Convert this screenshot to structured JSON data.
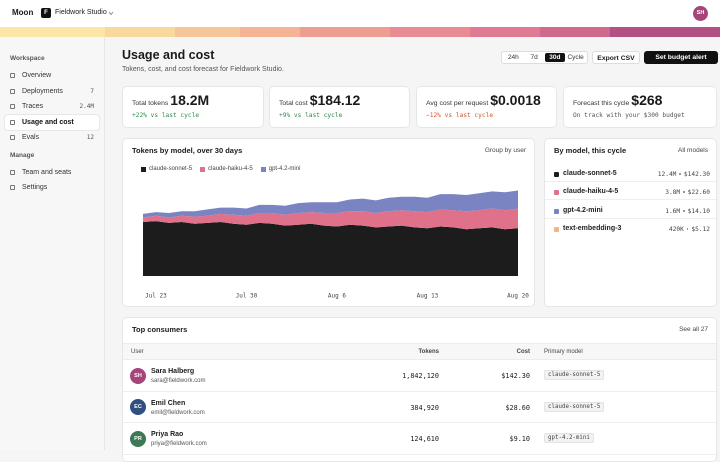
{
  "header": {
    "brand": "Moon",
    "workspace_initial": "F",
    "workspace": "Fieldwork Studio",
    "user_initials": "SH"
  },
  "sidebar": {
    "sections": [
      {
        "title": "Workspace",
        "items": [
          {
            "label": "Overview"
          },
          {
            "label": "Deployments",
            "count": 7
          },
          {
            "label": "Traces",
            "count": "2.4M"
          },
          {
            "label": "Usage and cost",
            "active": true
          },
          {
            "label": "Evals",
            "count": 12
          }
        ]
      },
      {
        "title": "Manage",
        "items": [
          {
            "label": "Team and seats"
          },
          {
            "label": "Settings"
          }
        ]
      }
    ]
  },
  "page": {
    "title": "Usage and cost",
    "subtitle": "Tokens, cost, and cost forecast for Fieldwork Studio.",
    "ranges": [
      "24h",
      "7d",
      "30d",
      "Cycle"
    ],
    "active_range": 2,
    "actions": [
      "Export CSV",
      "Set budget alert"
    ]
  },
  "kpis": [
    {
      "label": "Total tokens",
      "value": "18.2M",
      "note": "+22% vs last cycle",
      "note_color": "#2f8a4e"
    },
    {
      "label": "Total cost",
      "value": "$184.12",
      "note": "+9% vs last cycle",
      "note_color": "#2f8a4e"
    },
    {
      "label": "Avg cost per request",
      "value": "$0.0018",
      "note": "−12% vs last cycle",
      "note_color": "#d0552f"
    },
    {
      "label": "Forecast this cycle",
      "value": "$268",
      "note": "On track with your $300 budget",
      "note_color": "#555555"
    }
  ],
  "usage_chart": {
    "type": "area",
    "title": "Tokens by model, over 30 days",
    "control": "Group by user",
    "categories": [
      null,
      "Jul 23",
      null,
      null,
      null,
      null,
      null,
      null,
      "Jul 30",
      null,
      null,
      null,
      null,
      null,
      null,
      "Aug 6",
      null,
      null,
      null,
      null,
      null,
      null,
      "Aug 13",
      null,
      null,
      null,
      null,
      null,
      null,
      "Aug 20"
    ],
    "ylim": [
      0,
      100
    ],
    "series": [
      {
        "name": "claude-sonnet-5",
        "color": "#1c1c1c",
        "values": [
          60,
          61,
          59,
          60,
          58,
          59,
          60,
          58,
          57,
          59,
          58,
          56,
          57,
          58,
          56,
          55,
          57,
          56,
          54,
          55,
          56,
          54,
          53,
          55,
          54,
          52,
          53,
          54,
          52,
          53
        ]
      },
      {
        "name": "claude-haiku-4-5",
        "color": "#e0718b",
        "values": [
          5,
          6,
          6,
          7,
          8,
          8,
          9,
          10,
          10,
          11,
          12,
          12,
          13,
          13,
          14,
          15,
          15,
          16,
          16,
          17,
          17,
          18,
          18,
          19,
          19,
          20,
          20,
          21,
          21,
          22
        ]
      },
      {
        "name": "gpt-4.2-mini",
        "color": "#7a84c2",
        "values": [
          4,
          4,
          5,
          5,
          6,
          7,
          7,
          8,
          8,
          9,
          9,
          10,
          11,
          11,
          12,
          12,
          13,
          14,
          14,
          15,
          15,
          16,
          16,
          17,
          18,
          18,
          19,
          19,
          20,
          20
        ]
      }
    ]
  },
  "by_model": {
    "title": "By model, this cycle",
    "control": "All models",
    "rows": [
      {
        "name": "claude-sonnet-5",
        "color": "#1c1c1c",
        "tokens": "12.4M",
        "cost": "$142.30"
      },
      {
        "name": "claude-haiku-4-5",
        "color": "#e0718b",
        "tokens": "3.8M",
        "cost": "$22.60"
      },
      {
        "name": "gpt-4.2-mini",
        "color": "#7a84c2",
        "tokens": "1.6M",
        "cost": "$14.10"
      },
      {
        "name": "text-embedding-3",
        "color": "#f0b38a",
        "tokens": "420K",
        "cost": "$5.12"
      }
    ]
  },
  "consumers": {
    "title": "Top consumers",
    "control": "See all 27",
    "columns": [
      "User",
      "Tokens",
      "Cost",
      "Primary model"
    ],
    "rows": [
      {
        "initials": "SH",
        "color": "#a5457a",
        "name": "Sara Halberg",
        "email": "sara@fieldwork.com",
        "tokens": "1,842,120",
        "cost": "$142.30",
        "model": "claude-sonnet-5"
      },
      {
        "initials": "EC",
        "color": "#2f4f7f",
        "name": "Emil Chen",
        "email": "emil@fieldwork.com",
        "tokens": "384,920",
        "cost": "$28.60",
        "model": "claude-sonnet-5"
      },
      {
        "initials": "PR",
        "color": "#3c7a55",
        "name": "Priya Rao",
        "email": "priya@fieldwork.com",
        "tokens": "124,610",
        "cost": "$9.10",
        "model": "gpt-4.2-mini"
      }
    ]
  }
}
